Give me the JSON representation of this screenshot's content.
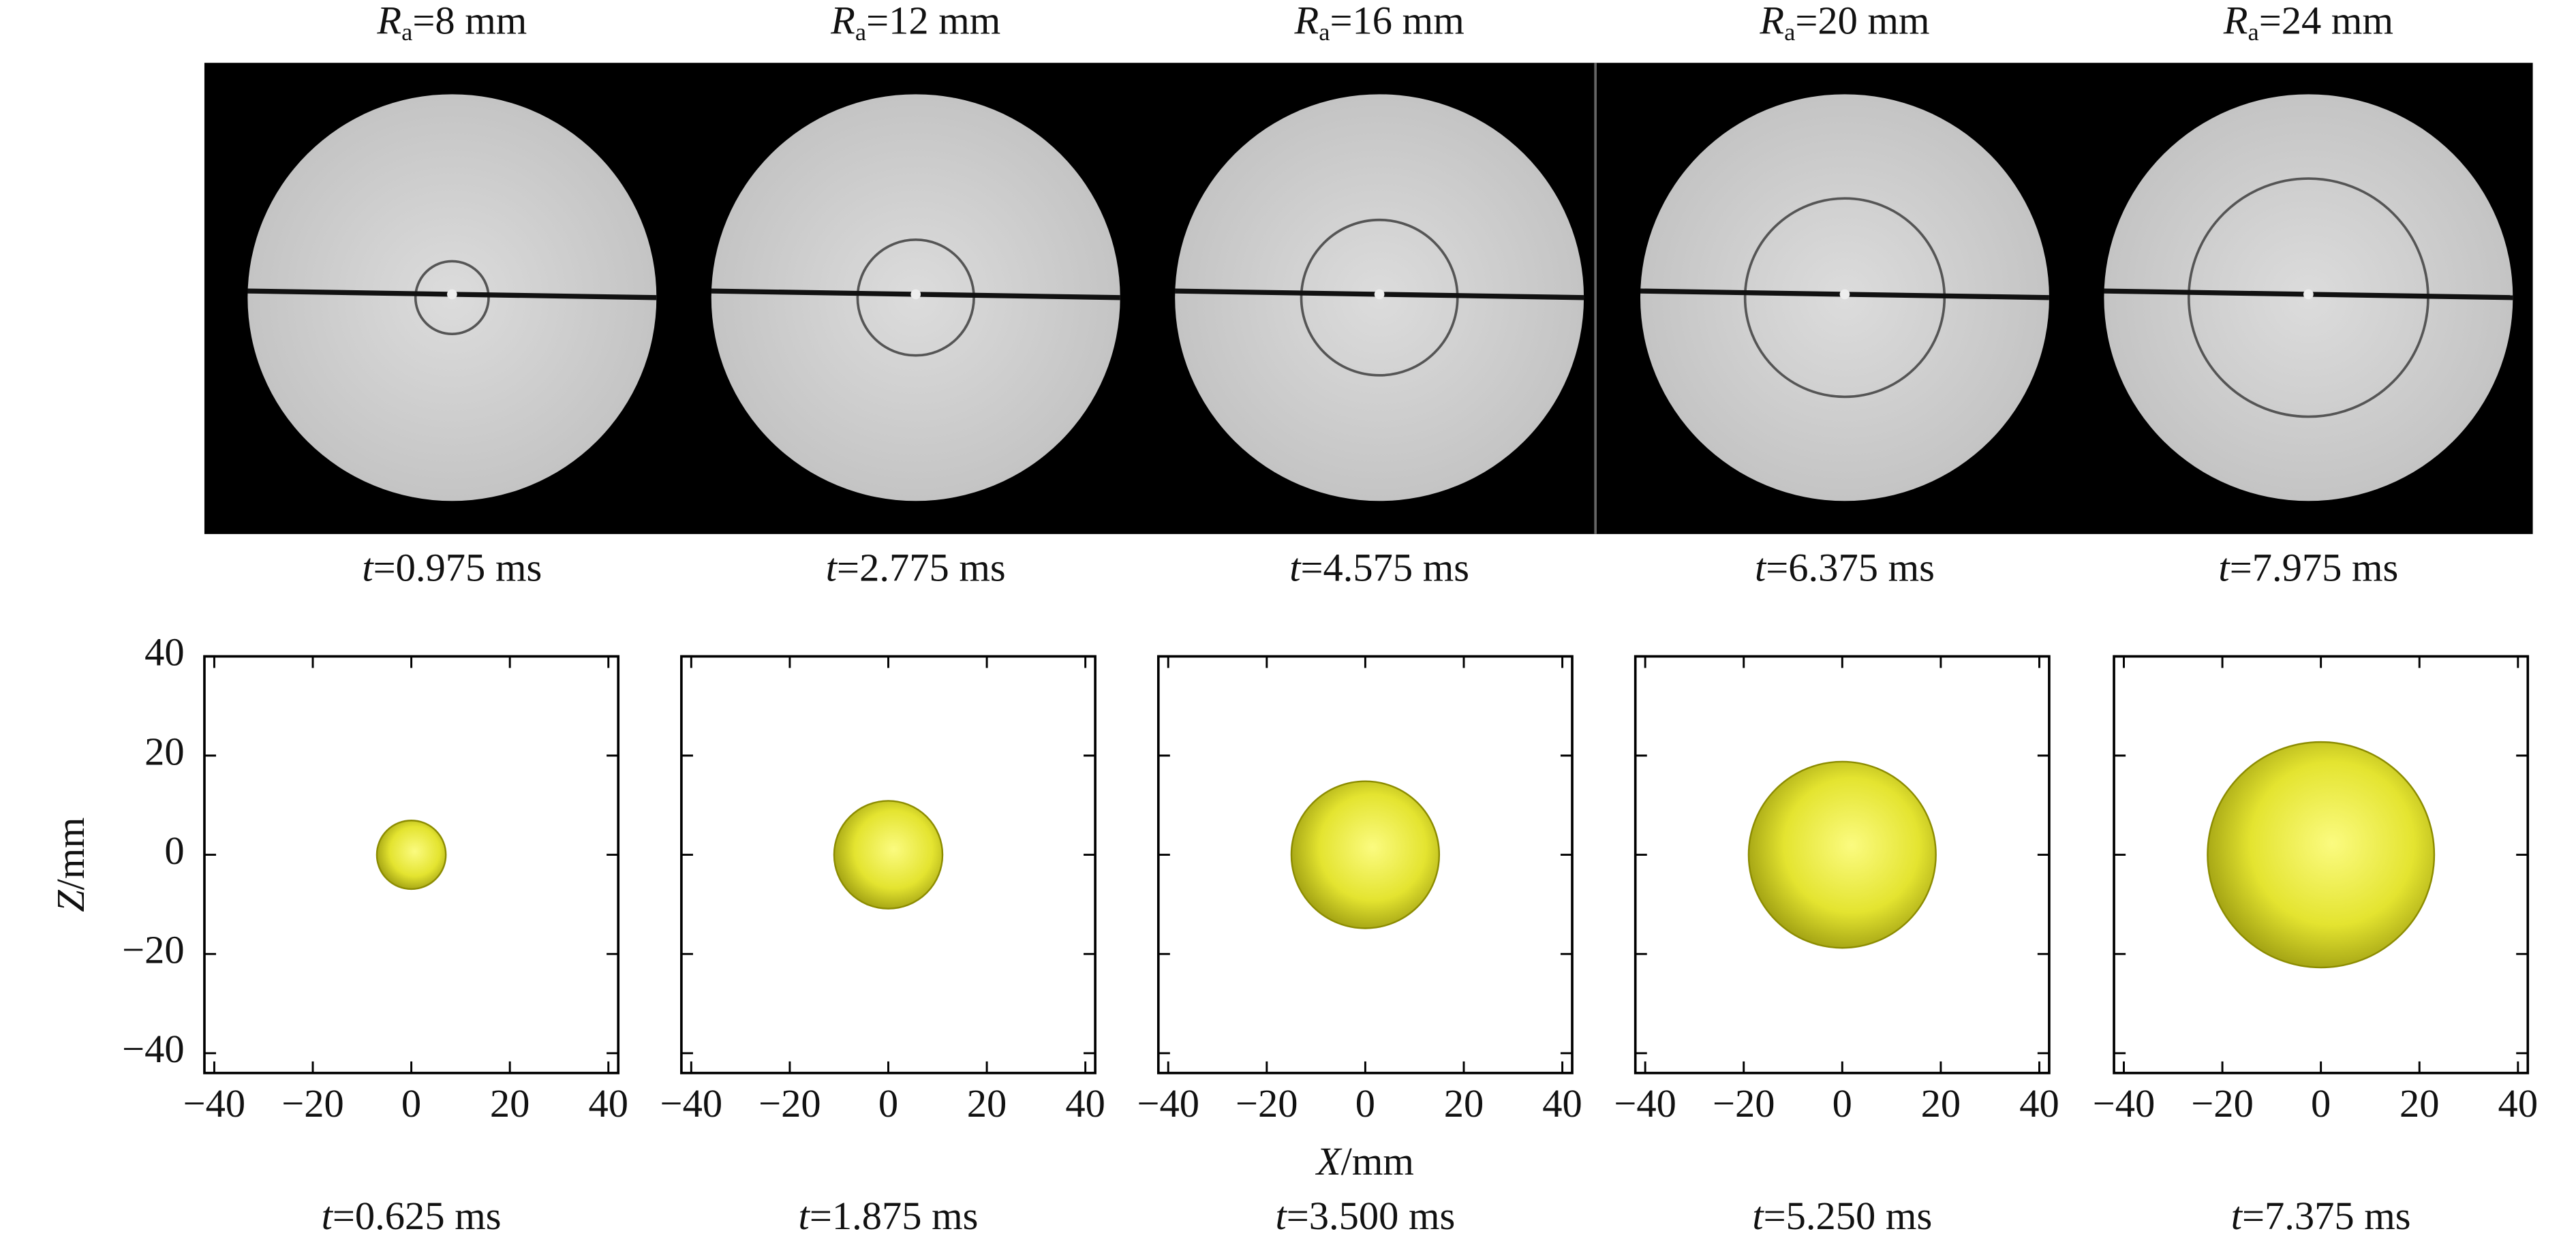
{
  "top_row": {
    "panels": [
      {
        "radius_label": {
          "symbol": "R",
          "subscript": "a",
          "text": "=8 mm"
        },
        "time_label": {
          "symbol": "t",
          "text": "=0.975 ms"
        }
      },
      {
        "radius_label": {
          "symbol": "R",
          "subscript": "a",
          "text": "=12 mm"
        },
        "time_label": {
          "symbol": "t",
          "text": "=2.775 ms"
        }
      },
      {
        "radius_label": {
          "symbol": "R",
          "subscript": "a",
          "text": "=16 mm"
        },
        "time_label": {
          "symbol": "t",
          "text": "=4.575 ms"
        }
      },
      {
        "radius_label": {
          "symbol": "R",
          "subscript": "a",
          "text": "=20 mm"
        },
        "time_label": {
          "symbol": "t",
          "text": "=6.375 ms"
        }
      },
      {
        "radius_label": {
          "symbol": "R",
          "subscript": "a",
          "text": "=24 mm"
        },
        "time_label": {
          "symbol": "t",
          "text": "=7.975 ms"
        }
      }
    ]
  },
  "chart_data": [
    {
      "type": "sphere",
      "title": {
        "symbol": "t",
        "text": "=0.625 ms"
      },
      "x": [
        0
      ],
      "y": [
        0
      ],
      "sizes": [
        7
      ],
      "color": "#e4e430",
      "ylabel": {
        "symbol": "Z",
        "text": "/mm"
      },
      "xlim": [
        -42,
        42
      ],
      "ylim": [
        -44,
        40
      ],
      "xticks": [
        {
          "value": -40,
          "label": "−40"
        },
        {
          "value": -20,
          "label": "−20"
        },
        0,
        20,
        40
      ],
      "yticks": [
        {
          "value": -40,
          "label": "−40"
        },
        {
          "value": -20,
          "label": "−20"
        },
        0,
        20,
        40
      ]
    },
    {
      "type": "sphere",
      "title": {
        "symbol": "t",
        "text": "=1.875 ms"
      },
      "x": [
        0
      ],
      "y": [
        0
      ],
      "sizes": [
        11
      ],
      "color": "#e4e430",
      "xlim": [
        -42,
        42
      ],
      "ylim": [
        -44,
        40
      ],
      "xticks": [
        {
          "value": -40,
          "label": "−40"
        },
        {
          "value": -20,
          "label": "−20"
        },
        0,
        20,
        40
      ],
      "yticks": [
        -40,
        -20,
        0,
        20,
        40
      ]
    },
    {
      "type": "sphere",
      "title": {
        "symbol": "t",
        "text": "=3.500 ms"
      },
      "x": [
        0
      ],
      "y": [
        0
      ],
      "sizes": [
        15
      ],
      "color": "#e4e430",
      "xlabel": {
        "symbol": "X",
        "text": "/mm"
      },
      "xlim": [
        -42,
        42
      ],
      "ylim": [
        -44,
        40
      ],
      "xticks": [
        {
          "value": -40,
          "label": "−40"
        },
        {
          "value": -20,
          "label": "−20"
        },
        0,
        20,
        40
      ],
      "yticks": [
        -40,
        -20,
        0,
        20,
        40
      ]
    },
    {
      "type": "sphere",
      "title": {
        "symbol": "t",
        "text": "=5.250 ms"
      },
      "x": [
        0
      ],
      "y": [
        0
      ],
      "sizes": [
        19
      ],
      "color": "#e4e430",
      "xlim": [
        -42,
        42
      ],
      "ylim": [
        -44,
        40
      ],
      "xticks": [
        {
          "value": -40,
          "label": "−40"
        },
        {
          "value": -20,
          "label": "−20"
        },
        0,
        20,
        40
      ],
      "yticks": [
        -40,
        -20,
        0,
        20,
        40
      ]
    },
    {
      "type": "sphere",
      "title": {
        "symbol": "t",
        "text": "=7.375 ms"
      },
      "x": [
        0
      ],
      "y": [
        0
      ],
      "sizes": [
        23
      ],
      "color": "#e4e430",
      "xlim": [
        -42,
        42
      ],
      "ylim": [
        -44,
        40
      ],
      "xticks": [
        {
          "value": -40,
          "label": "−40"
        },
        {
          "value": -20,
          "label": "−20"
        },
        0,
        20,
        40
      ],
      "yticks": [
        -40,
        -20,
        0,
        20,
        40
      ]
    }
  ]
}
